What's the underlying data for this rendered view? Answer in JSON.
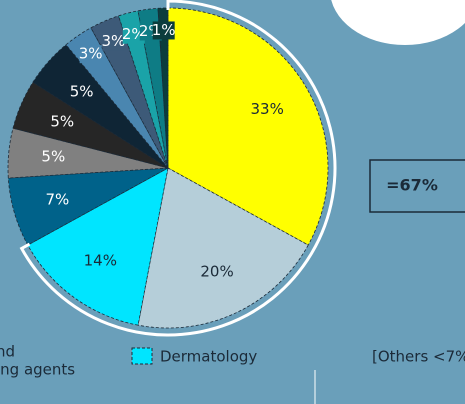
{
  "chart_data": {
    "type": "pie",
    "categories": [
      null,
      null,
      "Dermatology",
      null,
      null,
      null,
      null,
      null,
      null,
      null,
      null,
      null
    ],
    "values": [
      33,
      20,
      14,
      7,
      5,
      5,
      5,
      3,
      3,
      2,
      2,
      1
    ],
    "value_labels": [
      "33%",
      "20%",
      "14%",
      "7%",
      "5%",
      "5%",
      "5%",
      "3%",
      "3%",
      "2%",
      "2%",
      "1%"
    ],
    "colors": [
      "#ffff00",
      "#b5ced9",
      "#00e5ff",
      "#00628a",
      "#808080",
      "#262626",
      "#0f2535",
      "#4a86b0",
      "#3d5a78",
      "#1aa3a8",
      "#0e7c85",
      "#0b3d3d"
    ],
    "annotations": {
      "group_total": "=67%",
      "others": "[Others <7%]"
    },
    "partial_legend": [
      "nd",
      "ing agents"
    ]
  }
}
